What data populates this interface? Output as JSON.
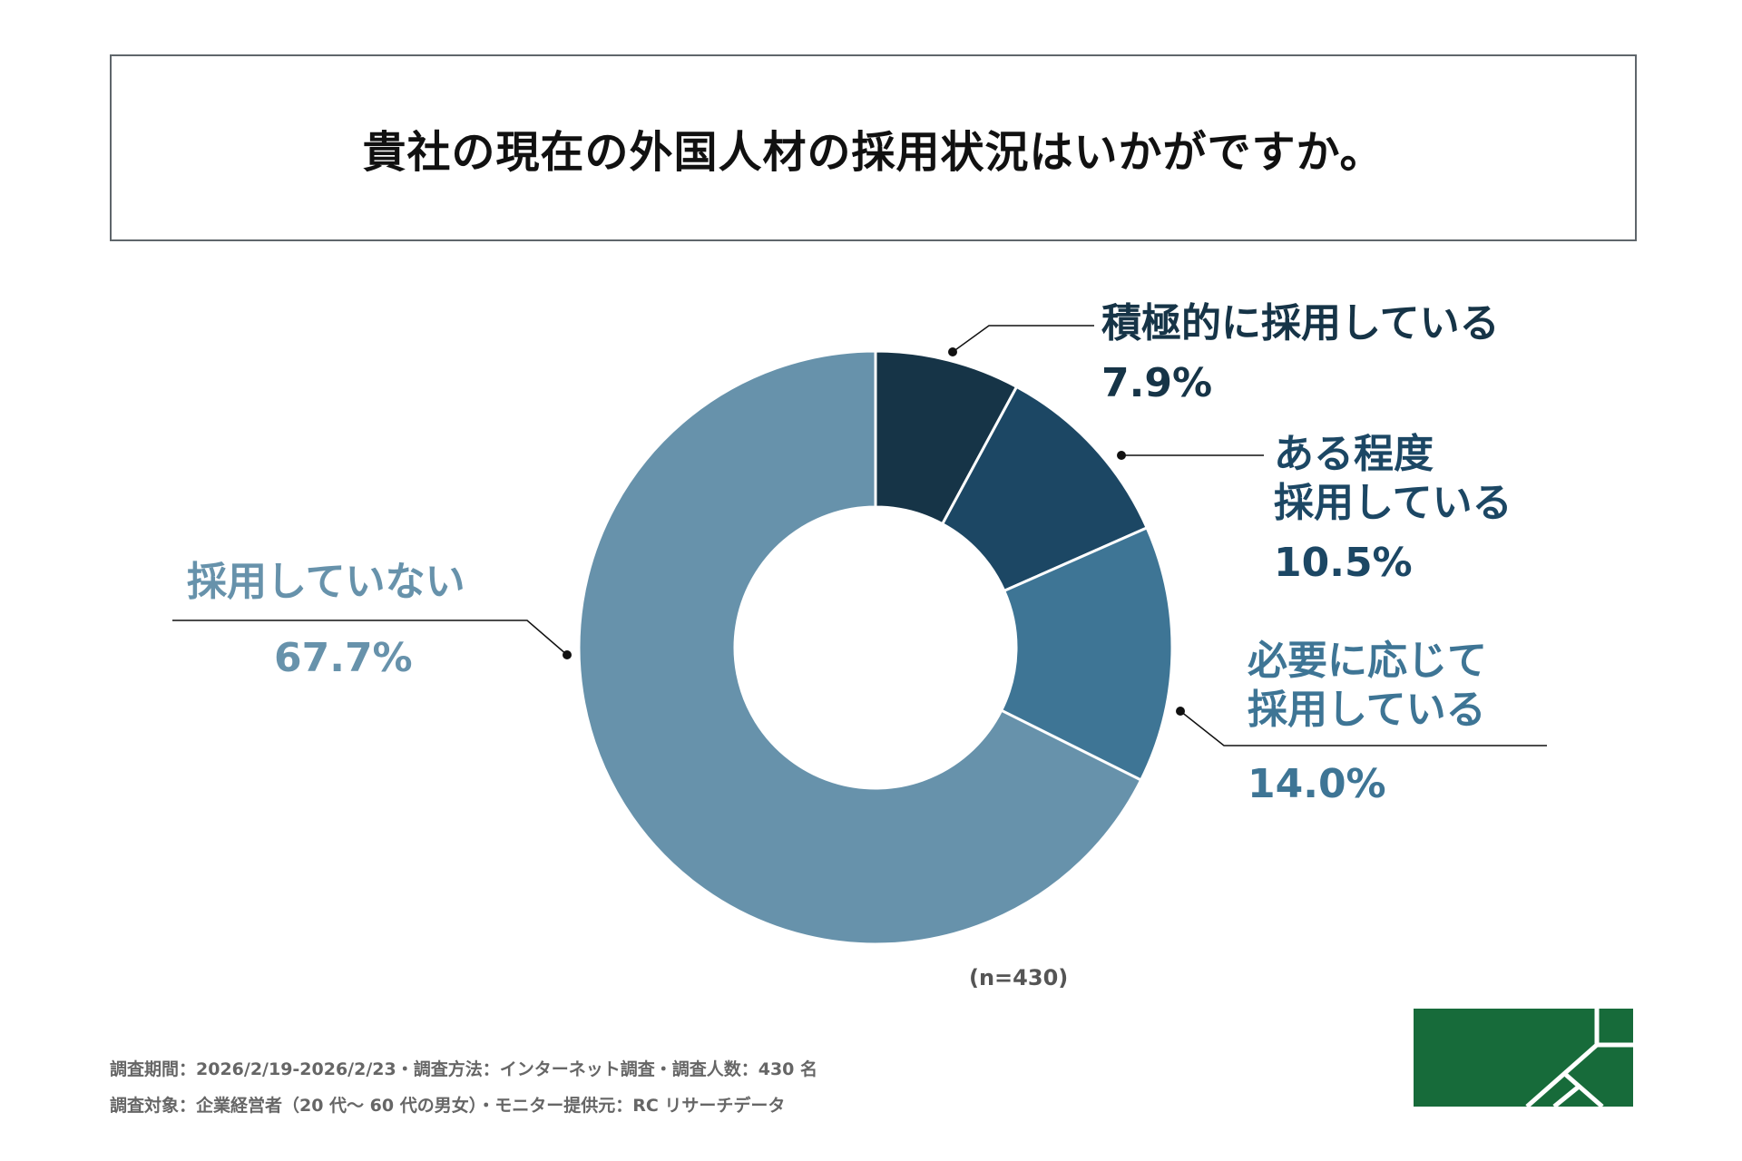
{
  "title": "貴社の現在の外国人材の採用状況はいかがですか。",
  "chart_data": {
    "type": "pie",
    "title": "貴社の現在の外国人材の採用状況はいかがですか。",
    "donut": true,
    "categories": [
      "積極的に採用している",
      "ある程度採用している",
      "必要に応じて採用している",
      "採用していない"
    ],
    "values": [
      7.9,
      10.5,
      14.0,
      67.7
    ],
    "value_labels": [
      "7.9%",
      "10.5%",
      "14.0%",
      "67.7%"
    ],
    "colors": [
      "#163447",
      "#1c4764",
      "#3e7595",
      "#6792ab"
    ],
    "sample_size": "(n=430)"
  },
  "labels": {
    "l0": [
      "積極的に採用している"
    ],
    "l1": [
      "ある程度",
      "採用している"
    ],
    "l2": [
      "必要に応じて",
      "採用している"
    ],
    "l3": [
      "採用していない"
    ]
  },
  "footer": {
    "line1": "調査期間：2026/2/19-2026/2/23・調査方法：インターネット調査・調査人数：430 名",
    "line2": "調査対象：企業経営者（20 代～ 60 代の男女）・モニター提供元：RC リサーチデータ"
  },
  "logo_color": "#176b3a"
}
